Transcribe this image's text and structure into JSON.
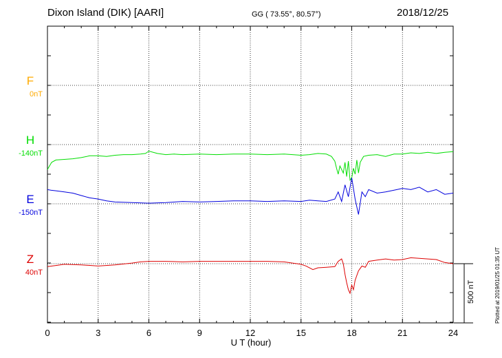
{
  "header": {
    "station": "Dixon Island (DIK)  [AARI]",
    "coords": "GG ( 73.55°,  80.57°)",
    "date": "2018/12/25"
  },
  "channels": [
    {
      "key": "F",
      "letter": "F",
      "base": "0nT",
      "color": "#ffaa00"
    },
    {
      "key": "H",
      "letter": "H",
      "base": "-140nT",
      "color": "#00dd00"
    },
    {
      "key": "E",
      "letter": "E",
      "base": "-150nT",
      "color": "#0000dd"
    },
    {
      "key": "Z",
      "letter": "Z",
      "base": "40nT",
      "color": "#dd0000"
    }
  ],
  "xaxis": {
    "label": "U T (hour)",
    "ticks": [
      "0",
      "3",
      "6",
      "9",
      "12",
      "15",
      "18",
      "21",
      "24"
    ]
  },
  "scale_bar": "500 nT",
  "plotted_note": "Plotted at 2019/01/25 01:35 UT",
  "chart_data": {
    "type": "line",
    "xlabel": "U T (hour)",
    "xlim": [
      0,
      24
    ],
    "grid": true,
    "series": [
      {
        "name": "H",
        "color": "#00dd00",
        "x": [
          0,
          0.25,
          0.5,
          1,
          1.5,
          2,
          2.5,
          3,
          3.5,
          4,
          4.5,
          5,
          5.5,
          5.8,
          6,
          6.5,
          7,
          7.5,
          8,
          9,
          10,
          11,
          12,
          13,
          14,
          15,
          15.5,
          16,
          16.5,
          16.8,
          17,
          17.1,
          17.2,
          17.3,
          17.5,
          17.6,
          17.7,
          17.8,
          17.9,
          18,
          18.1,
          18.2,
          18.3,
          18.4,
          18.5,
          18.7,
          19,
          19.5,
          20,
          20.5,
          21,
          21.5,
          22,
          22.5,
          23,
          23.5,
          24
        ],
        "y": [
          -210,
          -150,
          -130,
          -125,
          -120,
          -110,
          -95,
          -95,
          -100,
          -90,
          -85,
          -85,
          -80,
          -75,
          -55,
          -75,
          -85,
          -80,
          -85,
          -80,
          -85,
          -80,
          -80,
          -85,
          -80,
          -90,
          -85,
          -75,
          -80,
          -100,
          -140,
          -200,
          -250,
          -180,
          -240,
          -150,
          -270,
          -140,
          -300,
          -280,
          -200,
          -250,
          -130,
          -240,
          -150,
          -100,
          -90,
          -85,
          -100,
          -80,
          -80,
          -70,
          -75,
          -65,
          -75,
          -65,
          -60
        ]
      },
      {
        "name": "E",
        "color": "#0000dd",
        "x": [
          0,
          0.2,
          0.5,
          1,
          1.5,
          2,
          2.5,
          3,
          3.5,
          4,
          5,
          6,
          7,
          8,
          9,
          10,
          11,
          12,
          13,
          14,
          15,
          15.5,
          16,
          16.5,
          17,
          17.2,
          17.4,
          17.6,
          17.8,
          18,
          18.2,
          18.4,
          18.6,
          18.8,
          19,
          19.5,
          20,
          20.5,
          21,
          21.5,
          22,
          22.5,
          23,
          23.5,
          24
        ],
        "y": [
          120,
          115,
          110,
          100,
          90,
          70,
          50,
          40,
          25,
          15,
          10,
          5,
          10,
          20,
          15,
          20,
          25,
          25,
          20,
          25,
          20,
          30,
          25,
          20,
          40,
          100,
          20,
          160,
          60,
          220,
          40,
          -90,
          100,
          60,
          120,
          90,
          100,
          115,
          130,
          120,
          140,
          100,
          120,
          80,
          90
        ]
      },
      {
        "name": "Z",
        "color": "#dd0000",
        "x": [
          0,
          0.5,
          1,
          2,
          3,
          4,
          5,
          5.5,
          6,
          7,
          8,
          9,
          10,
          11,
          12,
          13,
          14,
          15,
          15.3,
          15.7,
          16,
          16.5,
          17,
          17.2,
          17.4,
          17.5,
          17.6,
          17.7,
          17.8,
          17.9,
          18,
          18.1,
          18.2,
          18.4,
          18.6,
          18.8,
          19,
          19.5,
          20,
          20.5,
          21,
          21.5,
          22,
          22.5,
          23,
          23.5,
          24
        ],
        "y": [
          -25,
          -15,
          -5,
          -10,
          -20,
          -10,
          5,
          15,
          20,
          20,
          15,
          20,
          20,
          20,
          20,
          20,
          15,
          -5,
          -20,
          -50,
          -35,
          -30,
          -25,
          20,
          40,
          0,
          -90,
          -160,
          -220,
          -250,
          -180,
          -220,
          -140,
          -60,
          -20,
          -30,
          20,
          30,
          40,
          30,
          35,
          50,
          45,
          40,
          35,
          10,
          0
        ]
      },
      {
        "name": "F",
        "color": "#ffaa00",
        "x": [],
        "y": []
      }
    ],
    "y_units": "nT",
    "scale_bar_nT": 500
  }
}
